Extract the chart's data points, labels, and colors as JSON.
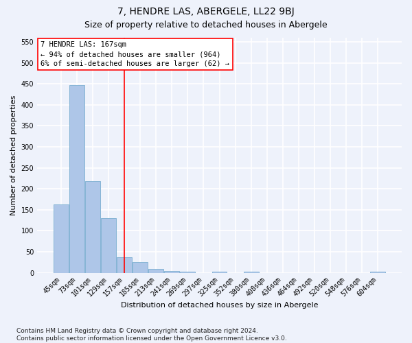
{
  "title": "7, HENDRE LAS, ABERGELE, LL22 9BJ",
  "subtitle": "Size of property relative to detached houses in Abergele",
  "xlabel": "Distribution of detached houses by size in Abergele",
  "ylabel": "Number of detached properties",
  "categories": [
    "45sqm",
    "73sqm",
    "101sqm",
    "129sqm",
    "157sqm",
    "185sqm",
    "213sqm",
    "241sqm",
    "269sqm",
    "297sqm",
    "325sqm",
    "352sqm",
    "380sqm",
    "408sqm",
    "436sqm",
    "464sqm",
    "492sqm",
    "520sqm",
    "548sqm",
    "576sqm",
    "604sqm"
  ],
  "values": [
    163,
    447,
    219,
    130,
    37,
    26,
    9,
    4,
    2,
    0,
    3,
    0,
    3,
    0,
    0,
    0,
    0,
    0,
    0,
    0,
    3
  ],
  "bar_color": "#aec6e8",
  "bar_edge_color": "#7aaed0",
  "vline_index": 4.5,
  "annotation_text": "7 HENDRE LAS: 167sqm\n← 94% of detached houses are smaller (964)\n6% of semi-detached houses are larger (62) →",
  "ylim": [
    0,
    560
  ],
  "yticks": [
    0,
    50,
    100,
    150,
    200,
    250,
    300,
    350,
    400,
    450,
    500,
    550
  ],
  "footer": "Contains HM Land Registry data © Crown copyright and database right 2024.\nContains public sector information licensed under the Open Government Licence v3.0.",
  "background_color": "#eef2fb",
  "grid_color": "#ffffff",
  "title_fontsize": 10,
  "subtitle_fontsize": 9,
  "axis_label_fontsize": 8,
  "tick_fontsize": 7,
  "annotation_fontsize": 7.5,
  "footer_fontsize": 6.5
}
